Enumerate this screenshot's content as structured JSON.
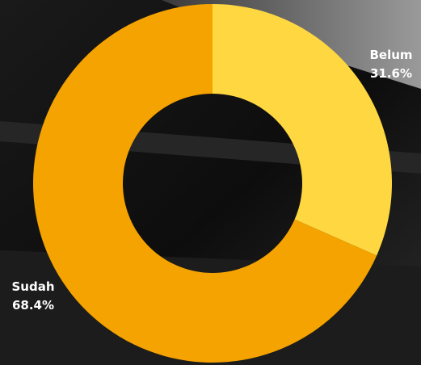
{
  "chart_data": {
    "type": "pie",
    "donut": true,
    "categories": [
      "Belum",
      "Sudah"
    ],
    "values": [
      31.6,
      68.4
    ],
    "value_labels": [
      "31.6%",
      "68.4%"
    ],
    "colors": [
      "#ffd740",
      "#f5a300"
    ]
  }
}
